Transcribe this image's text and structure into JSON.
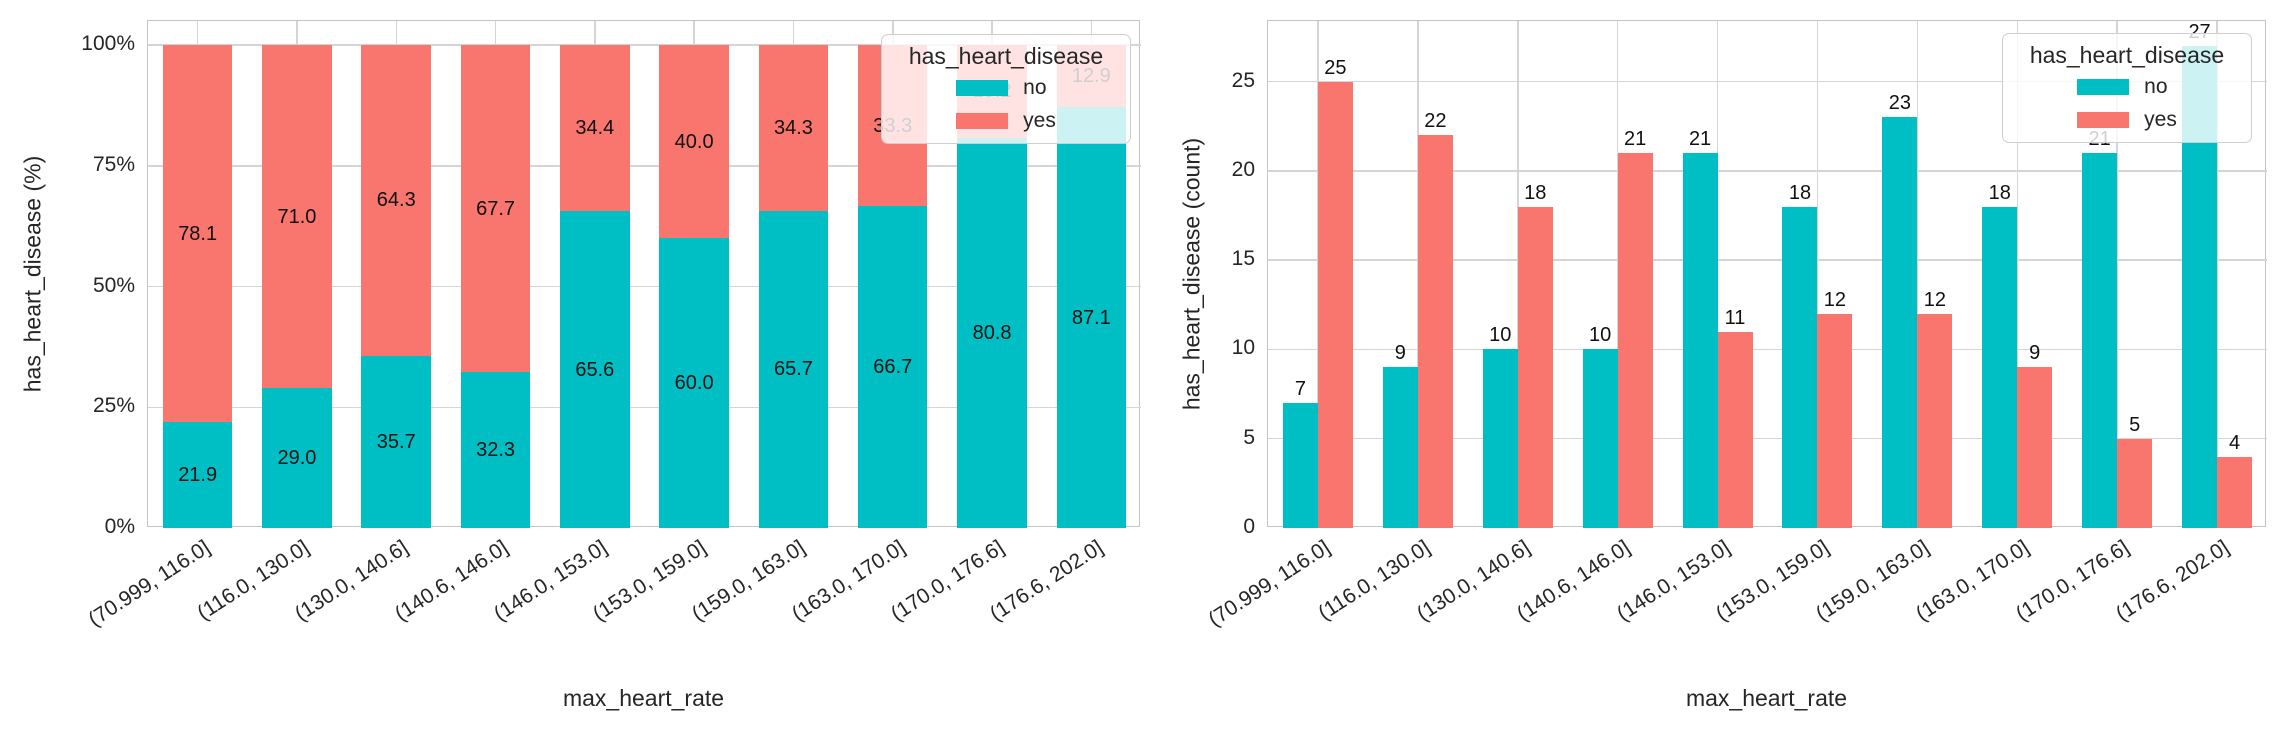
{
  "figure": {
    "background": "#ffffff"
  },
  "palette": {
    "no": "#00BFC4",
    "yes": "#F8766D",
    "grid": "#d5d5d5",
    "spine": "#c4c4c4",
    "text": "#262626"
  },
  "chart_data": [
    {
      "type": "bar",
      "variant": "stacked-percent",
      "xlabel": "max_heart_rate",
      "ylabel": "has_heart_disease (%)",
      "legend_title": "has_heart_disease",
      "legend_position": "upper right",
      "grid": true,
      "categories": [
        "(70.999, 116.0]",
        "(116.0, 130.0]",
        "(130.0, 140.6]",
        "(140.6, 146.0]",
        "(146.0, 153.0]",
        "(153.0, 159.0]",
        "(159.0, 163.0]",
        "(163.0, 170.0]",
        "(170.0, 176.6]",
        "(176.6, 202.0]"
      ],
      "series": [
        {
          "name": "no",
          "color": "#00BFC4",
          "values": [
            21.9,
            29.0,
            35.7,
            32.3,
            65.6,
            60.0,
            65.7,
            66.7,
            80.8,
            87.1
          ],
          "labels": [
            "21.9",
            "29.0",
            "35.7",
            "32.3",
            "65.6",
            "60.0",
            "65.7",
            "66.7",
            "80.8",
            "87.1"
          ]
        },
        {
          "name": "yes",
          "color": "#F8766D",
          "values": [
            78.1,
            71.0,
            64.3,
            67.7,
            34.4,
            40.0,
            34.3,
            33.3,
            19.2,
            12.9
          ],
          "labels": [
            "78.1",
            "71.0",
            "64.3",
            "67.7",
            "34.4",
            "40.0",
            "34.3",
            "33.3",
            "19.2",
            "12.9"
          ]
        }
      ],
      "yticks": [
        {
          "value": 0,
          "label": "0%"
        },
        {
          "value": 25,
          "label": "25%"
        },
        {
          "value": 50,
          "label": "50%"
        },
        {
          "value": 75,
          "label": "75%"
        },
        {
          "value": 100,
          "label": "100%"
        }
      ],
      "ylim": [
        0,
        105
      ]
    },
    {
      "type": "bar",
      "variant": "grouped",
      "xlabel": "max_heart_rate",
      "ylabel": "has_heart_disease (count)",
      "legend_title": "has_heart_disease",
      "legend_position": "upper right",
      "grid": true,
      "categories": [
        "(70.999, 116.0]",
        "(116.0, 130.0]",
        "(130.0, 140.6]",
        "(140.6, 146.0]",
        "(146.0, 153.0]",
        "(153.0, 159.0]",
        "(159.0, 163.0]",
        "(163.0, 170.0]",
        "(170.0, 176.6]",
        "(176.6, 202.0]"
      ],
      "series": [
        {
          "name": "no",
          "color": "#00BFC4",
          "values": [
            7,
            9,
            10,
            10,
            21,
            18,
            23,
            18,
            21,
            27
          ],
          "labels": [
            "7",
            "9",
            "10",
            "10",
            "21",
            "18",
            "23",
            "18",
            "21",
            "27"
          ]
        },
        {
          "name": "yes",
          "color": "#F8766D",
          "values": [
            25,
            22,
            18,
            21,
            11,
            12,
            12,
            9,
            5,
            4
          ],
          "labels": [
            "25",
            "22",
            "18",
            "21",
            "11",
            "12",
            "12",
            "9",
            "5",
            "4"
          ]
        }
      ],
      "yticks": [
        {
          "value": 0,
          "label": "0"
        },
        {
          "value": 5,
          "label": "5"
        },
        {
          "value": 10,
          "label": "10"
        },
        {
          "value": 15,
          "label": "15"
        },
        {
          "value": 20,
          "label": "20"
        },
        {
          "value": 25,
          "label": "25"
        }
      ],
      "ylim": [
        0,
        28.4
      ]
    }
  ]
}
